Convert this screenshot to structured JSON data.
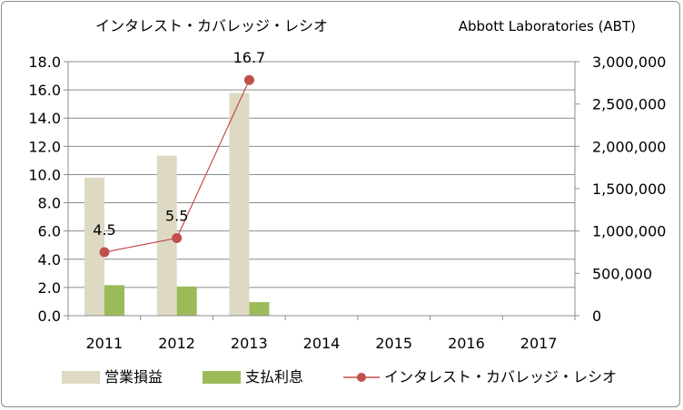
{
  "header": {
    "title": "インタレスト・カバレッジ・レシオ",
    "company": "Abbott Laboratories (ABT)"
  },
  "legend": {
    "items": [
      {
        "label": "営業損益",
        "color": "#ddd9c3",
        "kind": "bar"
      },
      {
        "label": "支払利息",
        "color": "#9bbb59",
        "kind": "bar"
      },
      {
        "label": "インタレスト・カバレッジ・レシオ",
        "color": "#c0504d",
        "kind": "line"
      }
    ]
  },
  "chart_data": {
    "type": "bar",
    "categories": [
      "2011",
      "2012",
      "2013",
      "2014",
      "2015",
      "2016",
      "2017"
    ],
    "series": [
      {
        "name": "営業損益",
        "axis": "right",
        "kind": "bar",
        "color": "#ddd9c3",
        "values": [
          1630000,
          1890000,
          2630000,
          null,
          null,
          null,
          null
        ]
      },
      {
        "name": "支払利息",
        "axis": "right",
        "kind": "bar",
        "color": "#9bbb59",
        "values": [
          360000,
          345000,
          160000,
          null,
          null,
          null,
          null
        ]
      },
      {
        "name": "インタレスト・カバレッジ・レシオ",
        "axis": "left",
        "kind": "line",
        "color": "#c0504d",
        "values": [
          4.5,
          5.5,
          16.7,
          null,
          null,
          null,
          null
        ],
        "data_labels": [
          "4.5",
          "5.5",
          "16.7",
          "",
          "",
          "",
          ""
        ]
      }
    ],
    "y_left": {
      "range": [
        0,
        18
      ],
      "ticks": [
        "0.0",
        "2.0",
        "4.0",
        "6.0",
        "8.0",
        "10.0",
        "12.0",
        "14.0",
        "16.0",
        "18.0"
      ]
    },
    "y_right": {
      "range": [
        0,
        3000000
      ],
      "ticks": [
        "0",
        "500,000",
        "1,000,000",
        "1,500,000",
        "2,000,000",
        "2,500,000",
        "3,000,000"
      ]
    },
    "grid": true,
    "legend_position": "bottom"
  }
}
